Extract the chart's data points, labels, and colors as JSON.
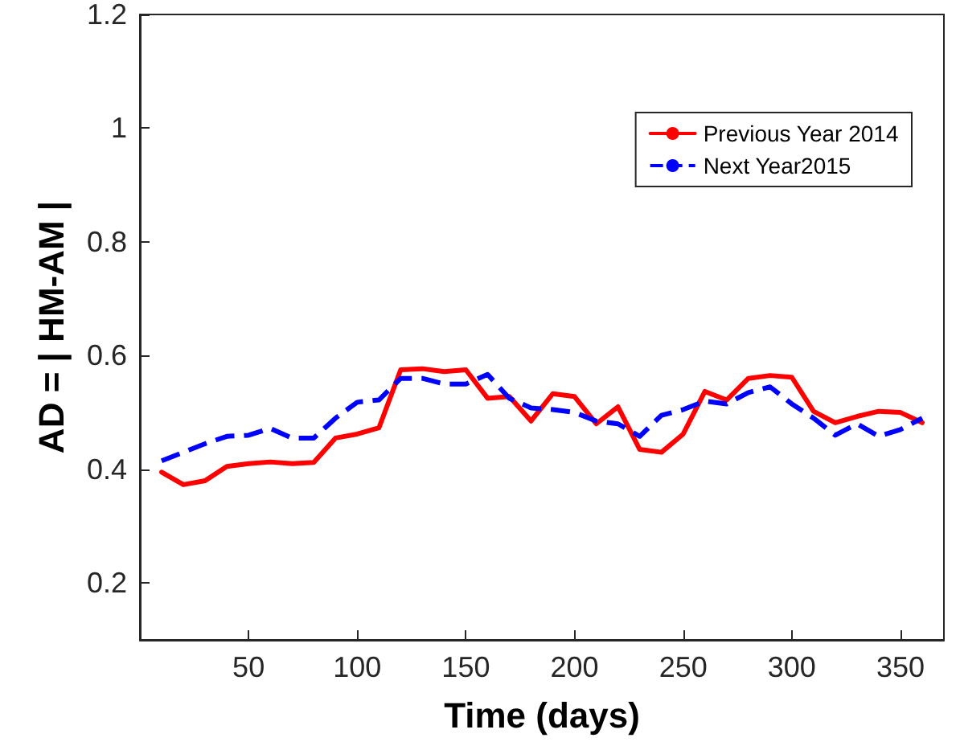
{
  "chart_data": {
    "type": "line",
    "xlabel": "Time (days)",
    "ylabel": "AD = | HM-AM |",
    "x": [
      10,
      20,
      30,
      40,
      50,
      60,
      70,
      80,
      90,
      100,
      110,
      120,
      130,
      140,
      150,
      160,
      170,
      180,
      190,
      200,
      210,
      220,
      230,
      240,
      250,
      260,
      270,
      280,
      290,
      300,
      310,
      320,
      330,
      340,
      350,
      360
    ],
    "series": [
      {
        "name": "Previous Year 2014",
        "color": "#ff0000",
        "line_style": "solid",
        "values": [
          0.395,
          0.373,
          0.38,
          0.405,
          0.41,
          0.413,
          0.41,
          0.412,
          0.455,
          0.462,
          0.473,
          0.575,
          0.577,
          0.572,
          0.575,
          0.525,
          0.528,
          0.485,
          0.533,
          0.528,
          0.48,
          0.51,
          0.435,
          0.43,
          0.462,
          0.537,
          0.522,
          0.56,
          0.565,
          0.562,
          0.502,
          0.482,
          0.493,
          0.502,
          0.5,
          0.482
        ]
      },
      {
        "name": "Next Year2015",
        "color": "#0000ff",
        "line_style": "dashed",
        "values": [
          0.415,
          0.43,
          0.445,
          0.458,
          0.46,
          0.472,
          0.455,
          0.455,
          0.49,
          0.518,
          0.522,
          0.56,
          0.56,
          0.55,
          0.55,
          0.567,
          0.525,
          0.508,
          0.505,
          0.5,
          0.485,
          0.48,
          0.458,
          0.495,
          0.505,
          0.52,
          0.515,
          0.535,
          0.545,
          0.515,
          0.49,
          0.46,
          0.48,
          0.458,
          0.47,
          0.49
        ]
      }
    ],
    "xlim": [
      0,
      370
    ],
    "xticks": [
      50,
      100,
      150,
      200,
      250,
      300,
      350
    ],
    "ylim": [
      0.1,
      1.2
    ],
    "yticks": [
      0.2,
      0.4,
      0.6,
      0.8,
      1,
      1.2
    ],
    "grid": false,
    "legend": "top right",
    "marker": "none"
  }
}
